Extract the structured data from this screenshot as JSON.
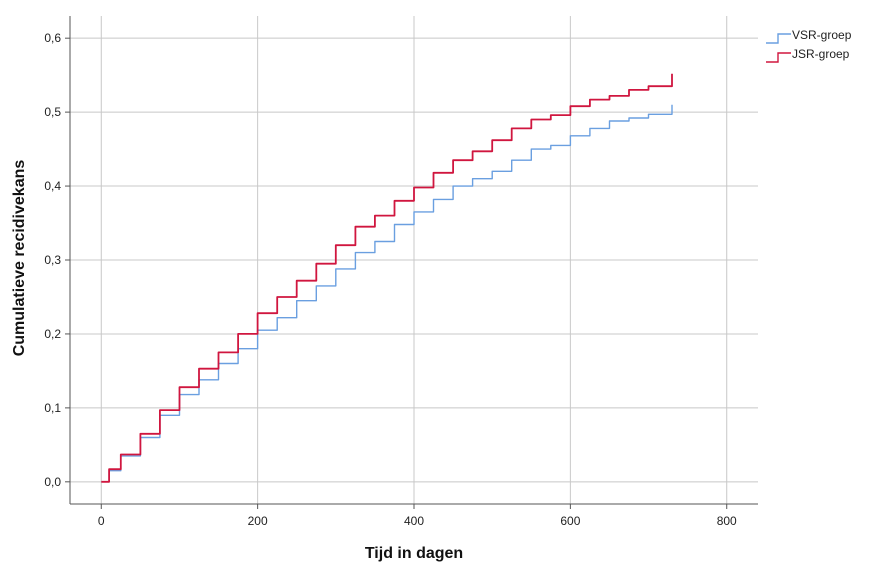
{
  "chart_data": {
    "type": "line",
    "xlabel": "Tijd in dagen",
    "ylabel": "Cumulatieve recidivekans",
    "xlim": [
      -40,
      840
    ],
    "ylim": [
      -0.03,
      0.63
    ],
    "xticks": [
      0,
      200,
      400,
      600,
      800
    ],
    "xtick_labels": [
      "0",
      "200",
      "400",
      "600",
      "800"
    ],
    "yticks": [
      0.0,
      0.1,
      0.2,
      0.3,
      0.4,
      0.5,
      0.6
    ],
    "ytick_labels": [
      "0,0",
      "0,1",
      "0,2",
      "0,3",
      "0,4",
      "0,5",
      "0,6"
    ],
    "grid": true,
    "legend_position": "top-right",
    "step": true,
    "series": [
      {
        "name": "VSR-groep",
        "color": "#6a9fe0",
        "x": [
          0,
          10,
          25,
          50,
          75,
          100,
          125,
          150,
          175,
          200,
          225,
          250,
          275,
          300,
          325,
          350,
          375,
          400,
          425,
          450,
          475,
          500,
          525,
          550,
          575,
          600,
          625,
          650,
          675,
          700,
          730
        ],
        "y": [
          0.0,
          0.015,
          0.035,
          0.06,
          0.09,
          0.118,
          0.138,
          0.16,
          0.18,
          0.205,
          0.222,
          0.245,
          0.265,
          0.288,
          0.31,
          0.325,
          0.348,
          0.365,
          0.382,
          0.4,
          0.41,
          0.42,
          0.435,
          0.45,
          0.455,
          0.468,
          0.478,
          0.488,
          0.492,
          0.497,
          0.51
        ]
      },
      {
        "name": "JSR-groep",
        "color": "#d0163f",
        "x": [
          0,
          10,
          25,
          50,
          75,
          100,
          125,
          150,
          175,
          200,
          225,
          250,
          275,
          300,
          325,
          350,
          375,
          400,
          425,
          450,
          475,
          500,
          525,
          550,
          575,
          600,
          625,
          650,
          675,
          700,
          730
        ],
        "y": [
          0.0,
          0.017,
          0.037,
          0.065,
          0.097,
          0.128,
          0.153,
          0.175,
          0.2,
          0.228,
          0.25,
          0.272,
          0.295,
          0.32,
          0.345,
          0.36,
          0.38,
          0.398,
          0.418,
          0.435,
          0.447,
          0.462,
          0.478,
          0.49,
          0.496,
          0.508,
          0.517,
          0.522,
          0.53,
          0.535,
          0.552
        ]
      }
    ]
  }
}
